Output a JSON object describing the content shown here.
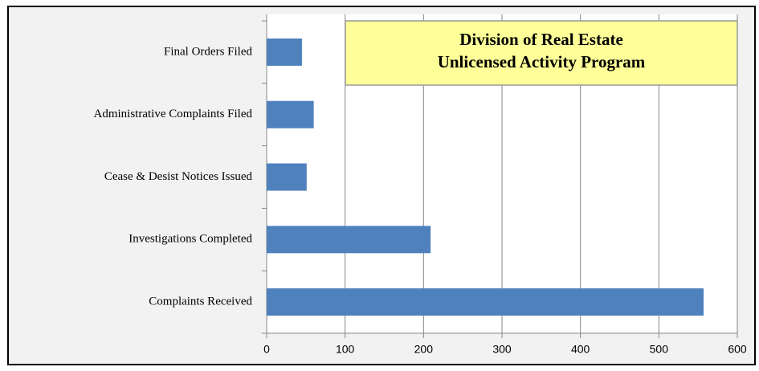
{
  "chart_data": {
    "type": "bar",
    "orientation": "horizontal",
    "title_lines": [
      "Division of Real Estate",
      "Unlicensed Activity Program"
    ],
    "categories": [
      "Final Orders Filed",
      "Administrative Complaints Filed",
      "Cease & Desist Notices Issued",
      "Investigations Completed",
      "Complaints Received"
    ],
    "values": [
      45,
      60,
      51,
      209,
      557
    ],
    "color": "#4f81bd",
    "xlim": [
      0,
      600
    ],
    "xticks": [
      0,
      100,
      200,
      300,
      400,
      500,
      600
    ],
    "grid": true
  }
}
